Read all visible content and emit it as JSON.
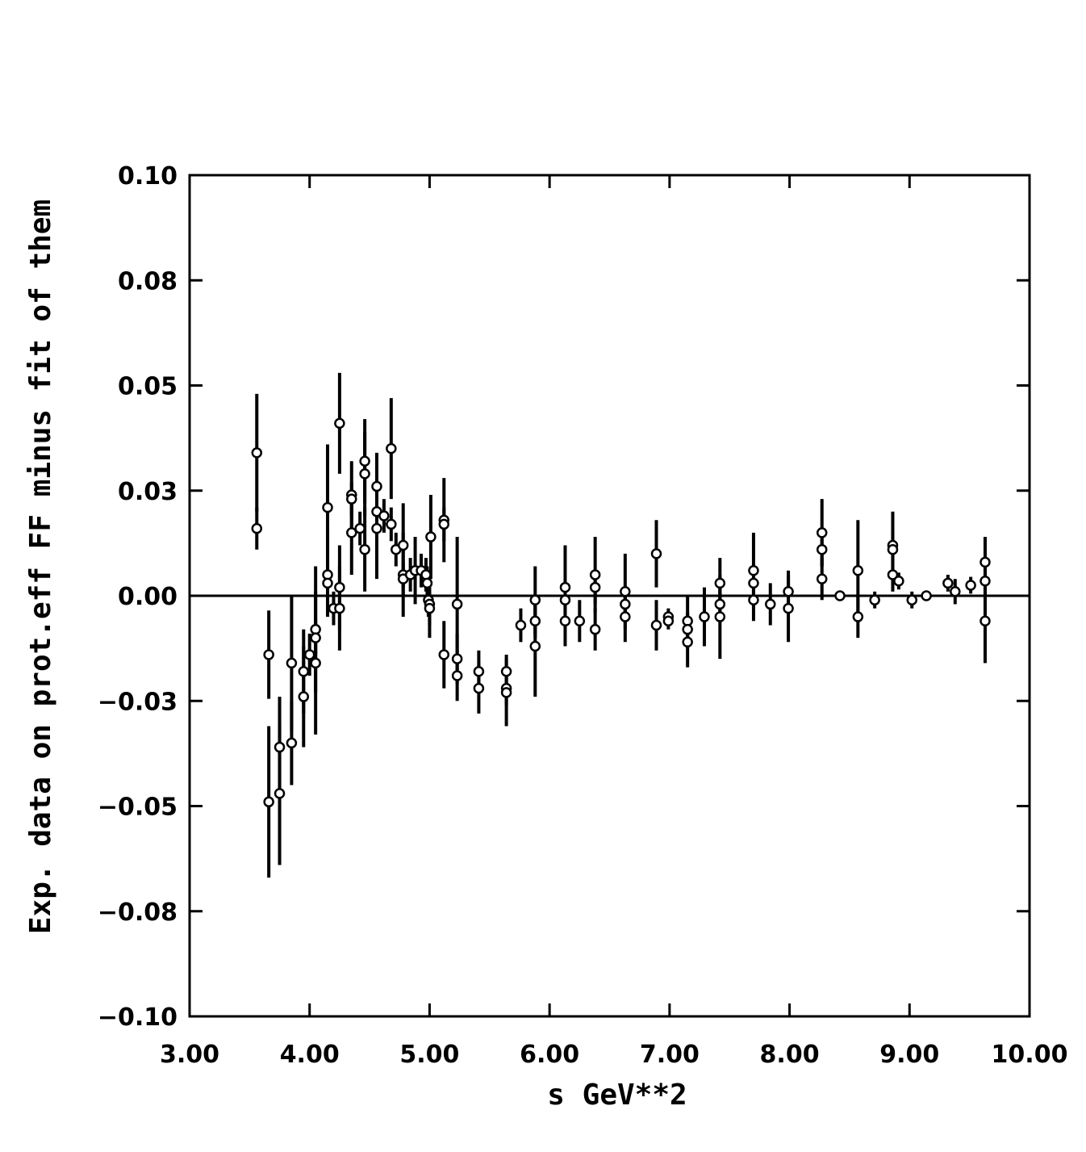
{
  "chart_data": {
    "type": "scatter",
    "x_label": "s GeV**2",
    "y_label": "Exp. data on prot.eff FF minus fit of them",
    "xlim": [
      3,
      10
    ],
    "ylim": [
      -0.1,
      0.1
    ],
    "xticks": [
      {
        "value": 3,
        "label": "3.00"
      },
      {
        "value": 4,
        "label": "4.00"
      },
      {
        "value": 5,
        "label": "5.00"
      },
      {
        "value": 6,
        "label": "6.00"
      },
      {
        "value": 7,
        "label": "7.00"
      },
      {
        "value": 8,
        "label": "8.00"
      },
      {
        "value": 9,
        "label": "9.00"
      },
      {
        "value": 10,
        "label": "10.00"
      }
    ],
    "yticks": [
      {
        "value": -0.1,
        "label": "−0.10"
      },
      {
        "value": -0.075,
        "label": "−0.08"
      },
      {
        "value": -0.05,
        "label": "−0.05"
      },
      {
        "value": -0.025,
        "label": "−0.03"
      },
      {
        "value": 0,
        "label": "0.00"
      },
      {
        "value": 0.025,
        "label": "0.03"
      },
      {
        "value": 0.05,
        "label": "0.05"
      },
      {
        "value": 0.075,
        "label": "0.08"
      },
      {
        "value": 0.1,
        "label": "0.10"
      }
    ],
    "zero_line": true,
    "color": "#000000",
    "x": [
      3.56,
      3.56,
      3.66,
      3.66,
      3.75,
      3.75,
      3.85,
      3.85,
      3.95,
      3.95,
      4.0,
      4.05,
      4.05,
      4.05,
      4.15,
      4.15,
      4.15,
      4.2,
      4.25,
      4.25,
      4.25,
      4.35,
      4.35,
      4.35,
      4.42,
      4.46,
      4.46,
      4.46,
      4.56,
      4.56,
      4.56,
      4.62,
      4.68,
      4.68,
      4.72,
      4.78,
      4.78,
      4.78,
      4.84,
      4.88,
      4.93,
      4.97,
      4.98,
      4.99,
      5.0,
      5.0,
      5.01,
      5.12,
      5.12,
      5.12,
      5.23,
      5.23,
      5.23,
      5.41,
      5.41,
      5.64,
      5.64,
      5.64,
      5.76,
      5.88,
      5.88,
      5.88,
      6.13,
      6.13,
      6.13,
      6.25,
      6.38,
      6.38,
      6.38,
      6.63,
      6.63,
      6.63,
      6.89,
      6.89,
      6.99,
      6.99,
      7.15,
      7.15,
      7.15,
      7.29,
      7.42,
      7.42,
      7.42,
      7.7,
      7.7,
      7.7,
      7.84,
      7.99,
      7.99,
      8.27,
      8.27,
      8.27,
      8.42,
      8.57,
      8.57,
      8.71,
      8.86,
      8.86,
      8.86,
      8.91,
      9.02,
      9.14,
      9.32,
      9.38,
      9.51,
      9.63,
      9.63,
      9.63
    ],
    "values": [
      0.034,
      0.016,
      -0.014,
      -0.049,
      -0.036,
      -0.047,
      -0.016,
      -0.035,
      -0.018,
      -0.024,
      -0.014,
      -0.008,
      -0.01,
      -0.016,
      0.021,
      0.005,
      0.003,
      -0.003,
      0.041,
      0.002,
      -0.003,
      0.024,
      0.023,
      0.015,
      0.016,
      0.032,
      0.029,
      0.011,
      0.026,
      0.02,
      0.016,
      0.019,
      0.035,
      0.017,
      0.011,
      0.012,
      0.005,
      0.004,
      0.005,
      0.006,
      0.006,
      0.005,
      0.003,
      -0.001,
      -0.002,
      -0.003,
      0.014,
      0.018,
      0.017,
      -0.014,
      -0.002,
      -0.015,
      -0.019,
      -0.018,
      -0.022,
      -0.018,
      -0.022,
      -0.023,
      -0.007,
      -0.001,
      -0.006,
      -0.012,
      0.002,
      -0.001,
      -0.006,
      -0.006,
      0.005,
      0.002,
      -0.008,
      0.001,
      -0.002,
      -0.005,
      0.01,
      -0.007,
      -0.005,
      -0.006,
      -0.006,
      -0.008,
      -0.011,
      -0.005,
      0.003,
      -0.002,
      -0.005,
      0.006,
      0.003,
      -0.001,
      -0.002,
      0.001,
      -0.003,
      0.015,
      0.011,
      0.004,
      0,
      0.006,
      -0.005,
      -0.001,
      0.012,
      0.011,
      0.005,
      0.0035,
      -0.001,
      0,
      0.003,
      0.001,
      0.0025,
      0.008,
      0.0035,
      -0.006
    ],
    "errors": [
      0.014,
      0.005,
      0.0105,
      0.018,
      0.012,
      0.017,
      0.016,
      0.01,
      0.01,
      0.012,
      0.005,
      0.015,
      0.004,
      0.017,
      0.015,
      0.01,
      0.004,
      0.004,
      0.012,
      0.01,
      0.01,
      0.008,
      0.004,
      0.01,
      0.004,
      0.01,
      0.01,
      0.01,
      0.008,
      0.004,
      0.012,
      0.004,
      0.012,
      0.004,
      0.004,
      0.01,
      0.01,
      0.004,
      0.004,
      0.008,
      0.004,
      0.004,
      0.004,
      0.004,
      0.008,
      0.004,
      0.01,
      0.01,
      0.004,
      0.008,
      0.016,
      0.006,
      0.006,
      0.005,
      0.006,
      0.004,
      0.004,
      0.008,
      0.004,
      0.008,
      0.004,
      0.012,
      0.01,
      0.004,
      0.006,
      0.005,
      0.009,
      0.004,
      0.005,
      0.009,
      0.004,
      0.006,
      0.008,
      0.006,
      0.002,
      0.002,
      0.006,
      0.004,
      0.006,
      0.007,
      0.006,
      0.004,
      0.01,
      0.009,
      0.004,
      0.005,
      0.005,
      0.005,
      0.008,
      0.008,
      0.004,
      0.005,
      0.001,
      0.012,
      0.005,
      0.002,
      0.008,
      0.004,
      0.004,
      0.002,
      0.002,
      0.001,
      0.002,
      0.003,
      0.002,
      0.006,
      0.004,
      0.01
    ]
  }
}
